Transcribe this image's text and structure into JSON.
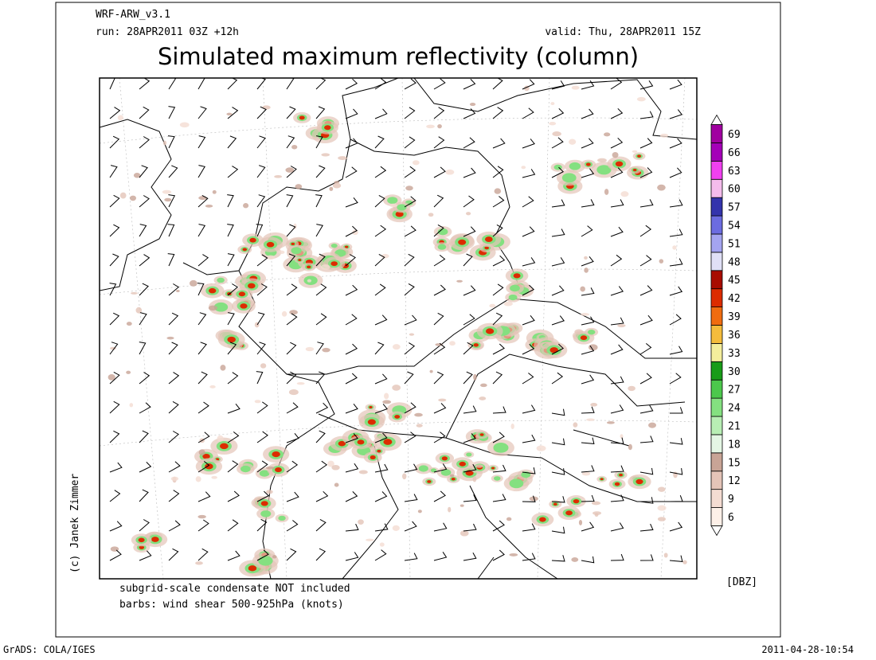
{
  "header": {
    "model": "WRF-ARW_v3.1",
    "run": "run: 28APR2011 03Z +12h",
    "valid": "valid: Thu, 28APR2011 15Z",
    "title": "Simulated maximum reflectivity (column)"
  },
  "colorbar": {
    "unit": "[DBZ]",
    "levels": [
      6,
      9,
      12,
      15,
      18,
      21,
      24,
      27,
      30,
      33,
      36,
      39,
      42,
      45,
      48,
      51,
      54,
      57,
      60,
      63,
      66,
      69
    ],
    "colors": [
      "#fdf0e8",
      "#f4dcd2",
      "#e4c4b8",
      "#c8a496",
      "#e4f6e4",
      "#b8eeb4",
      "#84e080",
      "#4cc84c",
      "#189c18",
      "#f4ee9c",
      "#f4bc3c",
      "#f06c10",
      "#dc2c00",
      "#a80c00",
      "#e0e0f6",
      "#a4a4f0",
      "#6c6ce0",
      "#3434ac",
      "#f4bcec",
      "#f040f0",
      "#a400b8",
      "#a000a0"
    ]
  },
  "notes": {
    "line1": "subgrid-scale condensate NOT included",
    "line2": "barbs: wind shear 500-925hPa (knots)"
  },
  "credit": "(c) Janek Zimmer",
  "footer": {
    "left": "GrADS: COLA/IGES",
    "right": "2011-04-28-10:54"
  }
}
